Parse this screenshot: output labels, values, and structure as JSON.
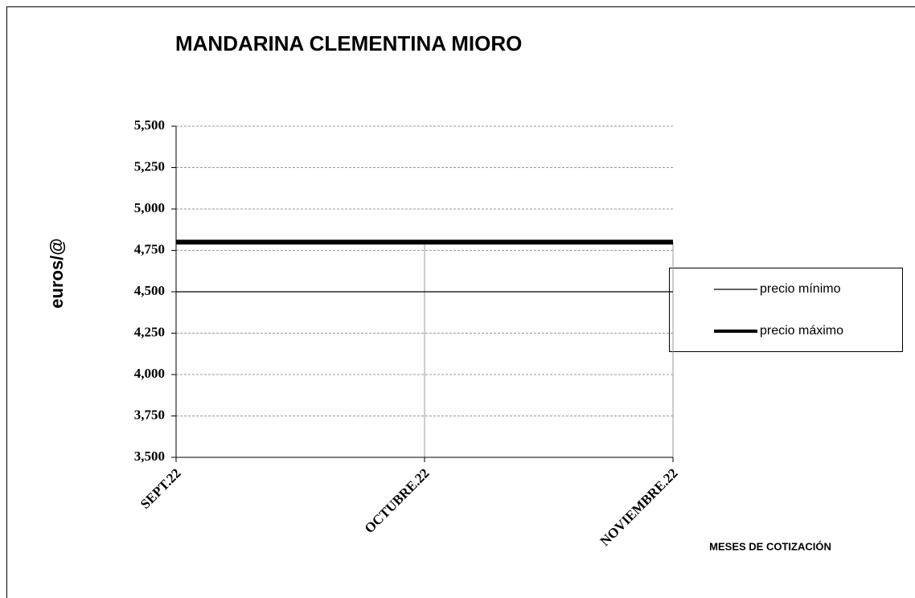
{
  "chart_data": {
    "type": "line",
    "title": "MANDARINA  CLEMENTINA MIORO",
    "ylabel": "euros/@",
    "xlabel": "MESES DE COTIZACIÓN",
    "categories": [
      "SEPT.22",
      "OCTUBRE.22",
      "NOVIEMBRE.22"
    ],
    "series": [
      {
        "name": "precio mínimo",
        "color": "#000000",
        "values": [
          4.5,
          4.5,
          4.5
        ]
      },
      {
        "name": "precio máximo",
        "color": "#000000",
        "values": [
          4.8,
          4.8,
          4.8
        ]
      }
    ],
    "ylim": [
      3.5,
      5.5
    ],
    "yticks": [
      {
        "value": 3.5,
        "label": "3,500"
      },
      {
        "value": 3.75,
        "label": "3,750"
      },
      {
        "value": 4,
        "label": "4,000"
      },
      {
        "value": 4.25,
        "label": "4,250"
      },
      {
        "value": 4.5,
        "label": "4,500"
      },
      {
        "value": 4.75,
        "label": "4,750"
      },
      {
        "value": 5,
        "label": "5,000"
      },
      {
        "value": 5.25,
        "label": "5,250"
      },
      {
        "value": 5.5,
        "label": "5,500"
      }
    ],
    "grid": true
  }
}
